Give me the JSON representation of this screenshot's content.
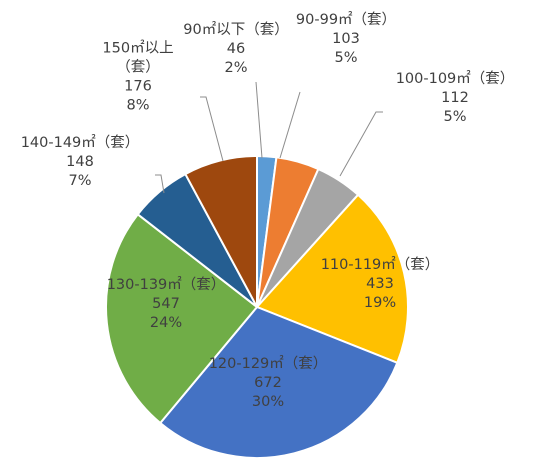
{
  "chart_data": {
    "type": "pie",
    "title": "",
    "legend": "none",
    "categories": [
      "90㎡以下（套）",
      "90-99㎡（套）",
      "100-109㎡（套）",
      "110-119㎡（套）",
      "120-129㎡（套）",
      "130-139㎡（套）",
      "140-149㎡（套）",
      "150㎡以上（套）"
    ],
    "values": [
      46,
      103,
      112,
      433,
      672,
      547,
      148,
      176
    ],
    "percent_labels": [
      "2%",
      "5%",
      "5%",
      "19%",
      "30%",
      "24%",
      "7%",
      "8%"
    ],
    "value_labels": [
      "46",
      "103",
      "112",
      "433",
      "672",
      "547",
      "148",
      "176"
    ],
    "label_lines": [
      [
        "90㎡以下（套）"
      ],
      [
        "90-99㎡（套）"
      ],
      [
        "100-109㎡（套）"
      ],
      [
        "110-119㎡（套）"
      ],
      [
        "120-129㎡（套）"
      ],
      [
        "130-139㎡（套）"
      ],
      [
        "140-149㎡（套）"
      ],
      [
        "150㎡以上",
        "（套）"
      ]
    ],
    "colors": [
      "#5B9BD5",
      "#ED7D31",
      "#A5A5A5",
      "#FFC000",
      "#4472C4",
      "#70AD47",
      "#255E91",
      "#9E480E"
    ]
  }
}
